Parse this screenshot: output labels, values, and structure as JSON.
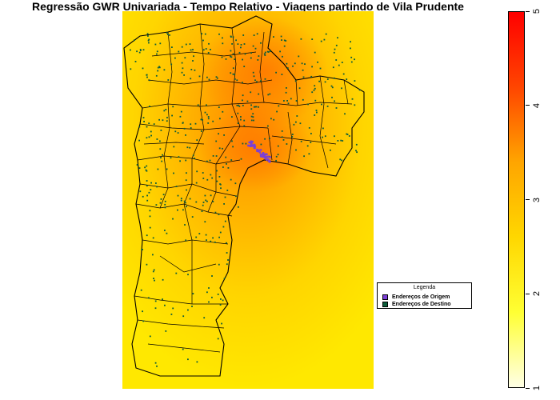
{
  "title": "Regressão GWR Univariada - Tempo Relativo - Viagens partindo de Vila Prudente",
  "legend": {
    "title": "Legenda",
    "items": [
      {
        "label": "Endereços de Origem",
        "color": "#7b3fd6"
      },
      {
        "label": "Endereços de Destino",
        "color": "#0b5d3a"
      }
    ]
  },
  "colorbar": {
    "min": 1,
    "max": 5,
    "ticks": [
      "1",
      "2",
      "3",
      "4",
      "5"
    ],
    "colors": [
      "#ffffe6",
      "#ffff33",
      "#ffd700",
      "#ffa500",
      "#ff4500",
      "#ff0000"
    ]
  },
  "map": {
    "background_gradient": [
      "#ffd800",
      "#ff9400"
    ]
  }
}
